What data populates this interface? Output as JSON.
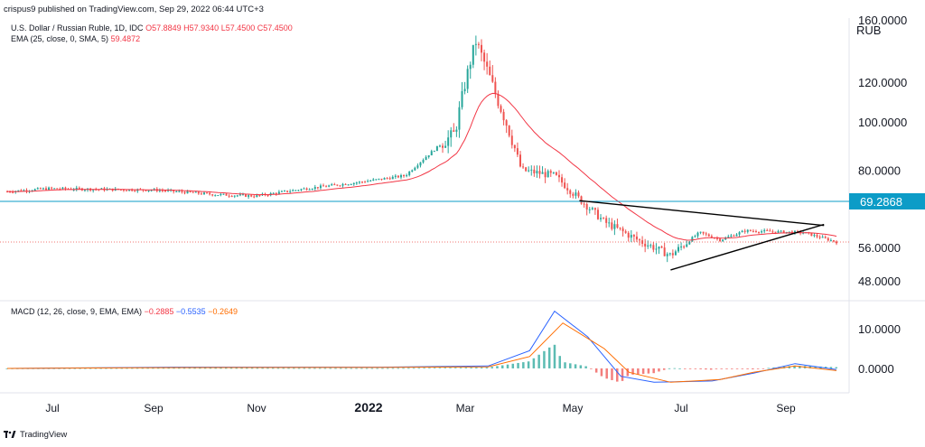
{
  "header": {
    "published": "crispus9 published on TradingView.com, Sep 29, 2022 06:44 UTC+3",
    "symbol": "U.S. Dollar / Russian Ruble, 1D, IDC",
    "ohlc": {
      "o": "O57.8849",
      "h": "H57.9340",
      "l": "L57.4500",
      "c": "C57.4500"
    },
    "ema_label": "EMA (25, close, 0, SMA, 5)",
    "ema_value": "59.4872",
    "currency": "RUB"
  },
  "macd_legend": {
    "label": "MACD (12, 26, close, 9, EMA, EMA)",
    "macd": "−0.2885",
    "signal": "−0.5535",
    "hist": "−0.2649"
  },
  "footer": {
    "brand": "TradingView"
  },
  "colors": {
    "up": "#26a69a",
    "down": "#ef5350",
    "ema": "#f23645",
    "hline": "#0c9cc7",
    "macd": "#2962ff",
    "signal": "#ff6d00",
    "price_badge": "#0c9cc7"
  },
  "chart_data": [
    {
      "type": "candlestick",
      "title": "U.S. Dollar / Russian Ruble, 1D, IDC",
      "x_ticks": [
        "Jul",
        "Sep",
        "Nov",
        "2022",
        "Mar",
        "May",
        "Jul",
        "Sep"
      ],
      "y_ticks": [
        "160.0000",
        "120.0000",
        "100.0000",
        "80.0000",
        "56.0000",
        "48.0000"
      ],
      "y_tick_values": [
        160,
        120,
        100,
        80,
        56,
        48
      ],
      "ylim": [
        44,
        160
      ],
      "log_scale": true,
      "last_price_dotted": 57.45,
      "horizontal_line": {
        "value": 69.2868,
        "label": "69.2868"
      },
      "close_points": [
        [
          "Jun 2021",
          72.5
        ],
        [
          "Jul 2021",
          73.5
        ],
        [
          "Aug 2021",
          73.2
        ],
        [
          "Sep 2021",
          73.0
        ],
        [
          "Oct 2021",
          71.5
        ],
        [
          "Nov 2021",
          71.0
        ],
        [
          "Dec 2021",
          73.5
        ],
        [
          "Jan 2022",
          75.5
        ],
        [
          "Feb 2022",
          78.0
        ],
        [
          "late Feb 2022",
          95.0
        ],
        [
          "Mar 2022",
          145.0
        ],
        [
          "Mar 2022b",
          112.0
        ],
        [
          "Apr 2022",
          80.0
        ],
        [
          "Apr 2022b",
          78.0
        ],
        [
          "May 2022",
          70.0
        ],
        [
          "May 2022b",
          63.0
        ],
        [
          "Jun 2022",
          58.0
        ],
        [
          "Jun 2022b",
          54.0
        ],
        [
          "Jul 2022",
          60.0
        ],
        [
          "Jul 2022b",
          58.0
        ],
        [
          "Aug 2022",
          60.5
        ],
        [
          "Sep 2022",
          60.0
        ],
        [
          "Sep 28 2022",
          57.45
        ]
      ],
      "trendlines": [
        {
          "from": [
            "May 2022",
            69.5
          ],
          "to": [
            "Sep 2022",
            62.0
          ]
        },
        {
          "from": [
            "Jun 2022",
            52.0
          ],
          "to": [
            "Sep 2022",
            62.0
          ]
        }
      ]
    },
    {
      "type": "macd",
      "y_ticks": [
        "10.0000",
        "0.0000"
      ],
      "y_tick_values": [
        10,
        0
      ],
      "ylim": [
        -5.5,
        16
      ],
      "macd_points": [
        [
          0,
          0
        ],
        [
          0.2,
          0.3
        ],
        [
          0.45,
          0.3
        ],
        [
          0.58,
          0.6
        ],
        [
          0.63,
          4.5
        ],
        [
          0.66,
          14.5
        ],
        [
          0.7,
          8
        ],
        [
          0.74,
          -2
        ],
        [
          0.78,
          -3.5
        ],
        [
          0.85,
          -3.2
        ],
        [
          0.9,
          -1.2
        ],
        [
          0.95,
          1.2
        ],
        [
          1.0,
          -0.29
        ]
      ],
      "signal_points": [
        [
          0,
          0
        ],
        [
          0.2,
          0.2
        ],
        [
          0.45,
          0.25
        ],
        [
          0.58,
          0.4
        ],
        [
          0.63,
          3
        ],
        [
          0.67,
          11.5
        ],
        [
          0.72,
          5
        ],
        [
          0.75,
          -1
        ],
        [
          0.8,
          -3.5
        ],
        [
          0.86,
          -2.8
        ],
        [
          0.9,
          -1.0
        ],
        [
          0.95,
          0.6
        ],
        [
          1.0,
          -0.55
        ]
      ]
    }
  ]
}
